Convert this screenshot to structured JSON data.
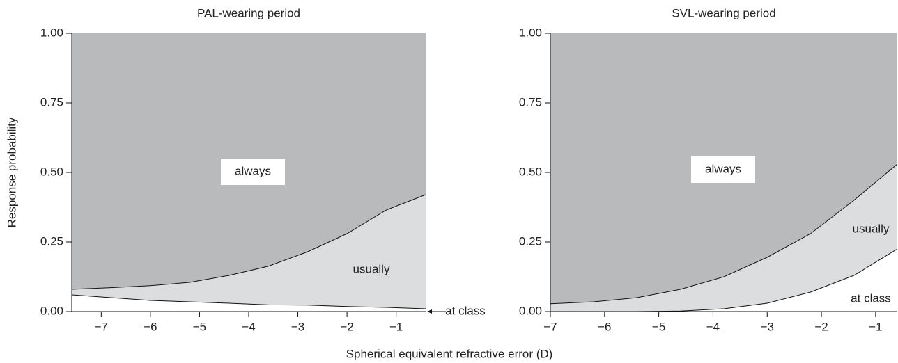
{
  "x_label": "Spherical equivalent refractive error (D)",
  "chart_data": [
    {
      "type": "stacked-area",
      "title": "PAL-wearing period",
      "y_label": "Response probability",
      "x": [
        -7.6,
        -6.8,
        -6,
        -5.2,
        -4.4,
        -3.6,
        -2.8,
        -2,
        -1.2,
        -0.4
      ],
      "series": [
        {
          "name": "at class",
          "color": "#ffffff",
          "values": [
            0.06,
            0.05,
            0.04,
            0.035,
            0.03,
            0.024,
            0.023,
            0.018,
            0.015,
            0.01
          ]
        },
        {
          "name": "usually",
          "color": "#dcdddf",
          "values": [
            0.02,
            0.036,
            0.053,
            0.07,
            0.1,
            0.139,
            0.192,
            0.262,
            0.35,
            0.41
          ]
        },
        {
          "name": "always",
          "color": "#b9babb",
          "values": [
            0.92,
            0.914,
            0.907,
            0.895,
            0.87,
            0.837,
            0.785,
            0.72,
            0.635,
            0.58
          ]
        }
      ],
      "xlim": [
        -7.6,
        -0.4
      ],
      "xticks": [
        {
          "value": -7,
          "label": "−7"
        },
        {
          "value": -6,
          "label": "−6"
        },
        {
          "value": -5,
          "label": "−5"
        },
        {
          "value": -4,
          "label": "−4"
        },
        {
          "value": -3,
          "label": "−3"
        },
        {
          "value": -2,
          "label": "−2"
        },
        {
          "value": -1,
          "label": "−1"
        }
      ],
      "ylim": [
        0,
        1
      ],
      "yticks": [
        {
          "value": 0,
          "label": "0.00"
        },
        {
          "value": 0.25,
          "label": "0.25"
        },
        {
          "value": 0.5,
          "label": "0.50"
        },
        {
          "value": 0.75,
          "label": "0.75"
        },
        {
          "value": 1,
          "label": "1.00"
        }
      ]
    },
    {
      "type": "stacked-area",
      "title": "SVL-wearing period",
      "x": [
        -7,
        -6.2,
        -5.4,
        -4.6,
        -3.8,
        -3,
        -2.2,
        -1.4,
        -0.6
      ],
      "series": [
        {
          "name": "at class",
          "color": "#ffffff",
          "values": [
            0,
            0,
            0,
            0.002,
            0.01,
            0.03,
            0.07,
            0.13,
            0.225
          ]
        },
        {
          "name": "usually",
          "color": "#dcdddf",
          "values": [
            0.028,
            0.035,
            0.05,
            0.078,
            0.115,
            0.165,
            0.21,
            0.27,
            0.305
          ]
        },
        {
          "name": "always",
          "color": "#b9babb",
          "values": [
            0.972,
            0.965,
            0.95,
            0.92,
            0.875,
            0.805,
            0.72,
            0.6,
            0.47
          ]
        }
      ],
      "xlim": [
        -7,
        -0.6
      ],
      "xticks": [
        {
          "value": -7,
          "label": "−7"
        },
        {
          "value": -6,
          "label": "−6"
        },
        {
          "value": -5,
          "label": "−5"
        },
        {
          "value": -4,
          "label": "−4"
        },
        {
          "value": -3,
          "label": "−3"
        },
        {
          "value": -2,
          "label": "−2"
        },
        {
          "value": -1,
          "label": "−1"
        }
      ],
      "ylim": [
        0,
        1
      ],
      "yticks": [
        {
          "value": 0,
          "label": "0.00"
        },
        {
          "value": 0.25,
          "label": "0.25"
        },
        {
          "value": 0.5,
          "label": "0.50"
        },
        {
          "value": 0.75,
          "label": "0.75"
        },
        {
          "value": 1,
          "label": "1.00"
        }
      ]
    }
  ]
}
